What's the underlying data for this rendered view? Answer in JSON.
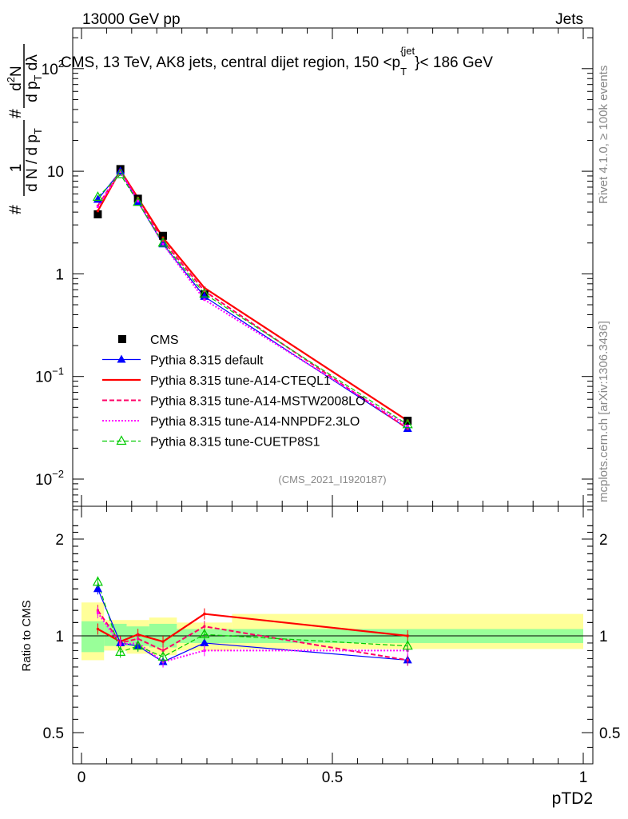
{
  "header": {
    "left_label": "13000 GeV pp",
    "right_label": "Jets"
  },
  "side_labels": {
    "rivet": "Rivet 4.1.0, ≥ 100k events",
    "mcplots": "mcplots.cern.ch [arXiv:1306.3436]"
  },
  "chart_data": [
    {
      "panel": "main",
      "type": "line",
      "scale": "log",
      "title": "CMS, 13 TeV, AK8 jets, central dijet region, 150 <p_T^{jet}< 186 GeV",
      "title_parts": {
        "prefix": "CMS, 13 TeV, AK8 jets, central dijet region, 150 <p",
        "sub": "T",
        "sup": "{jet",
        "suffix": "}< 186 GeV"
      },
      "ylabel": {
        "left": "#",
        "frac_num": "1",
        "frac_den": "d N / d p",
        "frac_den_sub": "T",
        "mid": "#",
        "frac2_num": "d",
        "frac2_num_sup": "2",
        "frac2_num_tail": "N",
        "frac2_den": "d p",
        "frac2_den_sub": "T",
        "frac2_den_tail": " dλ"
      },
      "ylim": [
        0.005,
        250
      ],
      "yticks": [
        {
          "v": 0.01,
          "base": "10",
          "exp": "−2"
        },
        {
          "v": 0.1,
          "base": "10",
          "exp": "−1"
        },
        {
          "v": 1,
          "base": "1",
          "exp": ""
        },
        {
          "v": 10,
          "base": "10",
          "exp": ""
        },
        {
          "v": 100,
          "base": "10",
          "exp": "2"
        }
      ],
      "watermark": "(CMS_2021_I1920187)",
      "x": [
        0.0325,
        0.0775,
        0.1125,
        0.1625,
        0.245,
        0.65
      ],
      "series": [
        {
          "name": "CMS",
          "color": "#000000",
          "values": [
            3.8,
            10.5,
            5.4,
            2.35,
            0.63,
            0.037
          ]
        },
        {
          "name": "Pythia 8.315 default",
          "color": "#0000ff",
          "values": [
            5.3,
            10.0,
            5.0,
            1.95,
            0.6,
            0.031
          ]
        },
        {
          "name": "Pythia 8.315 tune-A14-CTEQL1",
          "color": "#ff0000",
          "values": [
            4.1,
            10.2,
            5.5,
            2.25,
            0.73,
            0.037
          ]
        },
        {
          "name": "Pythia 8.315 tune-A14-MSTW2008LO",
          "color": "#ff0066",
          "values": [
            4.6,
            10.1,
            5.3,
            2.1,
            0.68,
            0.031
          ]
        },
        {
          "name": "Pythia 8.315 tune-A14-NNPDF2.3LO",
          "color": "#ff00ff",
          "values": [
            4.5,
            9.9,
            5.1,
            1.95,
            0.56,
            0.033
          ]
        },
        {
          "name": "Pythia 8.315 tune-CUETP8S1",
          "color": "#00cc00",
          "values": [
            5.6,
            9.3,
            5.0,
            2.0,
            0.64,
            0.034
          ]
        }
      ]
    },
    {
      "panel": "ratio",
      "type": "line",
      "ylabel": "Ratio to CMS",
      "xlabel": "pTD2",
      "xlim": [
        -0.02,
        1.02
      ],
      "ylim": [
        0.42,
        2.35
      ],
      "xticks": [
        0,
        0.5,
        1
      ],
      "xtick_labels": [
        "0",
        "0.5",
        "1"
      ],
      "yticks": [
        0.5,
        1,
        2
      ],
      "ytick_labels": [
        "0.5",
        "1",
        "2"
      ],
      "bin_edges": [
        0,
        0.045,
        0.09,
        0.135,
        0.19,
        0.3,
        1.0
      ],
      "band_stat": [
        [
          0.89,
          1.11
        ],
        [
          0.93,
          1.09
        ],
        [
          0.93,
          1.07
        ],
        [
          0.92,
          1.09
        ],
        [
          0.95,
          1.05
        ],
        [
          0.95,
          1.05
        ]
      ],
      "band_total": [
        [
          0.84,
          1.27
        ],
        [
          0.9,
          1.12
        ],
        [
          0.88,
          1.12
        ],
        [
          0.87,
          1.14
        ],
        [
          0.9,
          1.1
        ],
        [
          0.91,
          1.17
        ]
      ],
      "x": [
        0.0325,
        0.0775,
        0.1125,
        0.1625,
        0.245,
        0.65
      ],
      "series": [
        {
          "name": "Pythia 8.315 default",
          "color": "#0000ff",
          "values": [
            1.4,
            0.95,
            0.93,
            0.83,
            0.95,
            0.84
          ]
        },
        {
          "name": "Pythia 8.315 tune-A14-CTEQL1",
          "color": "#ff0000",
          "values": [
            1.05,
            0.96,
            1.01,
            0.96,
            1.17,
            1.0
          ]
        },
        {
          "name": "Pythia 8.315 tune-A14-MSTW2008LO",
          "color": "#ff0066",
          "values": [
            1.2,
            0.95,
            0.98,
            0.9,
            1.07,
            0.84
          ]
        },
        {
          "name": "Pythia 8.315 tune-A14-NNPDF2.3LO",
          "color": "#ff00ff",
          "values": [
            1.18,
            0.94,
            0.95,
            0.83,
            0.9,
            0.9
          ]
        },
        {
          "name": "Pythia 8.315 tune-CUETP8S1",
          "color": "#00cc00",
          "values": [
            1.47,
            0.89,
            0.93,
            0.86,
            1.01,
            0.93
          ]
        }
      ]
    }
  ]
}
